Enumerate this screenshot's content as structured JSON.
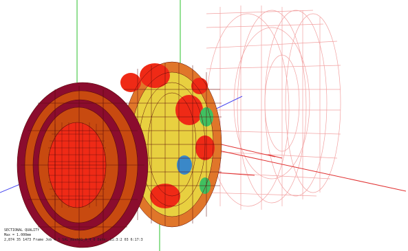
{
  "viewer": {
    "colors": {
      "background": "#ffffff",
      "wireframe": "#f2a0a0",
      "mesh_line": "#5a0a0a",
      "axis_green": "#29c229",
      "axis_blue": "#4a4af0",
      "axis_red": "#e03030",
      "fringe": [
        "#8b0c2e",
        "#c84a10",
        "#e0762a",
        "#ef2a16",
        "#f08c2a",
        "#e8d040",
        "#40c060",
        "#3a88c8"
      ]
    },
    "status": {
      "line1": "SECTIONAL QUALITY",
      "line2": "Max = 1.000mm",
      "line3": "2,874  35 1473    Frame   Job = 1  SAL_mesh01_A_4_0  Date: 11:3:2 03 6:17:3"
    }
  }
}
